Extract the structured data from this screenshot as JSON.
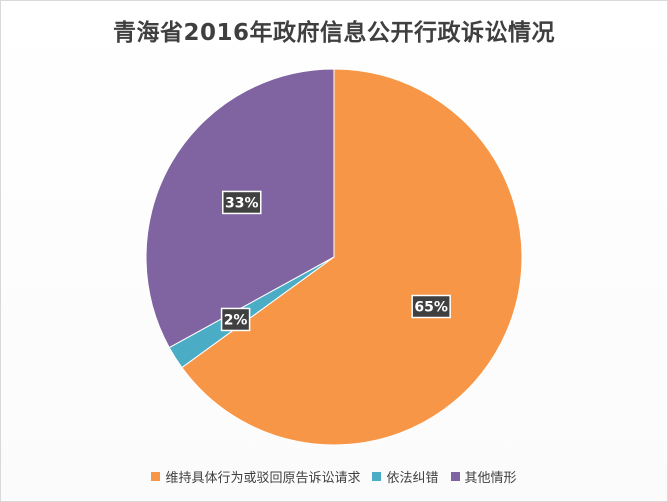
{
  "chart_data": {
    "type": "pie",
    "title": "青海省2016年政府信息公开行政诉讼情况",
    "categories": [
      "维持具体行为或驳回原告诉讼请求",
      "依法纠错",
      "其他情形"
    ],
    "values": [
      65,
      2,
      33
    ],
    "value_labels": [
      "65%",
      "2%",
      "33%"
    ],
    "colors": [
      "#F79646",
      "#4BACC6",
      "#8064A2"
    ],
    "legend_position": "bottom",
    "data_labels": true
  }
}
